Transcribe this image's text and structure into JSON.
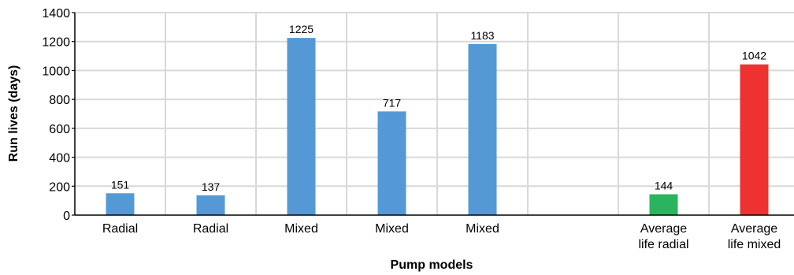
{
  "chart_data": {
    "type": "bar",
    "categories": [
      [
        "Radial"
      ],
      [
        "Radial"
      ],
      [
        "Mixed"
      ],
      [
        "Mixed"
      ],
      [
        "Mixed"
      ],
      [
        ""
      ],
      [
        "Average",
        "life radial"
      ],
      [
        "Average",
        "life mixed"
      ]
    ],
    "values": [
      151,
      137,
      1225,
      717,
      1183,
      null,
      144,
      1042
    ],
    "data_labels": [
      "151",
      "137",
      "1225",
      "717",
      "1183",
      "",
      "144",
      "1042"
    ],
    "bar_colors": [
      "#5499d5",
      "#5499d5",
      "#5499d5",
      "#5499d5",
      "#5499d5",
      "#5499d5",
      "#2bb45d",
      "#ee3131"
    ],
    "xlabel": "Pump models",
    "ylabel": "Run lives (days)",
    "ylim": [
      0,
      1400
    ],
    "yticks": [
      0,
      200,
      400,
      600,
      800,
      1000,
      1200,
      1400
    ],
    "grid": true,
    "grid_color": "#d9d9d9"
  }
}
